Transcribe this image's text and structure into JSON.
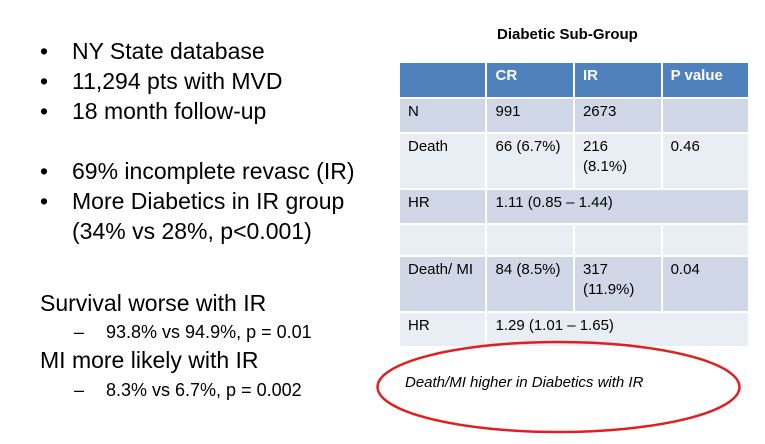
{
  "bullets": [
    "NY State database",
    "11,294 pts with MVD",
    "18 month follow-up",
    "69% incomplete revasc (IR)",
    "More Diabetics in IR group (34% vs 28%, p<0.001)"
  ],
  "survival": {
    "heading": "Survival worse with IR",
    "dash": "–",
    "detail": "93.8% vs 94.9%, p = 0.01"
  },
  "mi": {
    "heading": "MI more likely with IR",
    "dash": "–",
    "detail": "8.3% vs 6.7%, p = 0.002"
  },
  "table": {
    "title": "Diabetic Sub-Group",
    "headers": [
      "",
      "CR",
      "IR",
      "P value"
    ],
    "rows": [
      [
        "N",
        "991",
        "2673",
        ""
      ],
      [
        "Death",
        "66 (6.7%)",
        "216 (8.1%)",
        "0.46"
      ],
      [
        "HR",
        "1.11 (0.85 – 1.44)"
      ],
      [
        "",
        "",
        "",
        ""
      ],
      [
        "Death/ MI",
        "84 (8.5%)",
        "317 (11.9%)",
        "0.04"
      ],
      [
        "HR",
        "1.29 (1.01 – 1.65)"
      ]
    ]
  },
  "callout": {
    "text": "Death/MI higher in Diabetics with IR",
    "color": "#e02020"
  },
  "colors": {
    "header_fill": "#4f81bd",
    "row_dark": "#d0d8e8",
    "row_light": "#e9edf4"
  }
}
